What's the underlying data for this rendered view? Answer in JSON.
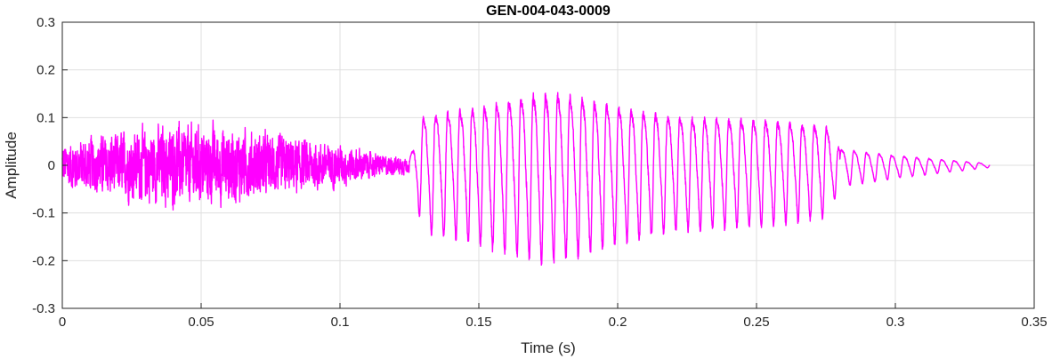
{
  "chart_data": {
    "type": "line",
    "title": "GEN-004-043-0009",
    "xlabel": "Time (s)",
    "ylabel": "Amplitude",
    "xlim": [
      0,
      0.35
    ],
    "ylim": [
      -0.3,
      0.3
    ],
    "xticks": [
      0,
      0.05,
      0.1,
      0.15,
      0.2,
      0.25,
      0.3,
      0.35
    ],
    "xtick_labels": [
      "0",
      "0.05",
      "0.1",
      "0.15",
      "0.2",
      "0.25",
      "0.3",
      "0.35"
    ],
    "yticks": [
      -0.3,
      -0.2,
      -0.1,
      0,
      0.1,
      0.2,
      0.3
    ],
    "ytick_labels": [
      "-0.3",
      "-0.2",
      "-0.1",
      "0",
      "0.1",
      "0.2",
      "0.3"
    ],
    "grid": true,
    "color": "#ff00ff",
    "series": [
      {
        "duration": 0.334,
        "envelope": [
          [
            0.0,
            0.06
          ],
          [
            0.02,
            0.08
          ],
          [
            0.04,
            0.1
          ],
          [
            0.06,
            0.09
          ],
          [
            0.08,
            0.07
          ],
          [
            0.1,
            0.05
          ],
          [
            0.115,
            0.025
          ],
          [
            0.125,
            0.02
          ],
          [
            0.13,
            0.15
          ],
          [
            0.15,
            0.18
          ],
          [
            0.17,
            0.22
          ],
          [
            0.18,
            0.22
          ],
          [
            0.2,
            0.18
          ],
          [
            0.22,
            0.15
          ],
          [
            0.25,
            0.14
          ],
          [
            0.275,
            0.12
          ],
          [
            0.28,
            0.05
          ],
          [
            0.3,
            0.03
          ],
          [
            0.334,
            0.005
          ]
        ],
        "voiced_segments": [
          {
            "start": 0.125,
            "end": 0.28,
            "period": 0.0044
          },
          {
            "start": 0.28,
            "end": 0.334,
            "period": 0.0045
          }
        ]
      }
    ]
  }
}
